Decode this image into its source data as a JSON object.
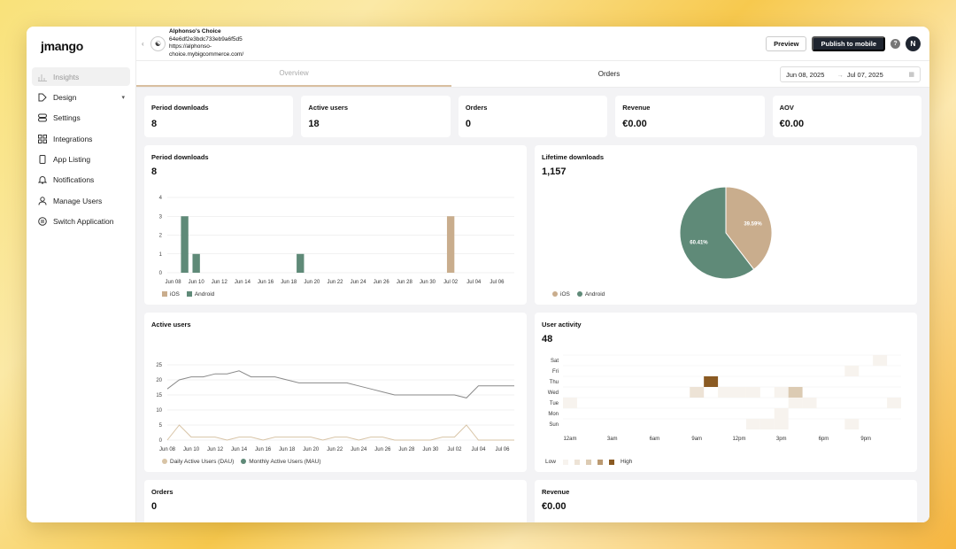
{
  "sidebar": {
    "logo": "jmango",
    "items": [
      {
        "label": "Insights",
        "icon": "bar-chart-icon",
        "active": true
      },
      {
        "label": "Design",
        "icon": "brush-icon",
        "caret": true
      },
      {
        "label": "Settings",
        "icon": "settings-icon"
      },
      {
        "label": "Integrations",
        "icon": "grid-icon"
      },
      {
        "label": "App Listing",
        "icon": "phone-icon"
      },
      {
        "label": "Notifications",
        "icon": "bell-icon"
      },
      {
        "label": "Manage Users",
        "icon": "user-icon"
      },
      {
        "label": "Switch Application",
        "icon": "switch-icon"
      }
    ]
  },
  "header": {
    "app_name": "Alphonso's Choice",
    "app_id": "64e6df2e3bdc733eb9a6f5d5",
    "app_url": "https://alphonso-choice.mybigcommerce.com/",
    "preview_label": "Preview",
    "publish_label": "Publish to mobile",
    "help": "?",
    "avatar_initial": "N"
  },
  "tabs": [
    {
      "label": "Overview",
      "active": true
    },
    {
      "label": "Orders",
      "active": false
    }
  ],
  "date_range": {
    "start": "Jun 08, 2025",
    "arrow": "→",
    "end": "Jul 07, 2025"
  },
  "kpis": [
    {
      "title": "Period downloads",
      "value": "8"
    },
    {
      "title": "Active users",
      "value": "18"
    },
    {
      "title": "Orders",
      "value": "0"
    },
    {
      "title": "Revenue",
      "value": "€0.00"
    },
    {
      "title": "AOV",
      "value": "€0.00"
    }
  ],
  "cards": {
    "period_downloads": {
      "title": "Period downloads",
      "value": "8"
    },
    "lifetime_downloads": {
      "title": "Lifetime downloads",
      "value": "1,157"
    },
    "active_users": {
      "title": "Active users",
      "value": ""
    },
    "user_activity": {
      "title": "User activity",
      "value": "48"
    },
    "orders": {
      "title": "Orders",
      "value": "0"
    },
    "revenue": {
      "title": "Revenue",
      "value": "€0.00"
    }
  },
  "colors": {
    "ios": "#c9ad8d",
    "android": "#5f8a78",
    "line_mau": "#8a8a8a",
    "line_dau": "#d8c4a6"
  },
  "chart_data": [
    {
      "type": "bar",
      "title": "",
      "categories": [
        "Jun 08",
        "Jun 09",
        "Jun 10",
        "Jun 11",
        "Jun 12",
        "Jun 13",
        "Jun 14",
        "Jun 15",
        "Jun 16",
        "Jun 17",
        "Jun 18",
        "Jun 19",
        "Jun 20",
        "Jun 21",
        "Jun 22",
        "Jun 23",
        "Jun 24",
        "Jun 25",
        "Jun 26",
        "Jun 27",
        "Jun 28",
        "Jun 29",
        "Jun 30",
        "Jul 01",
        "Jul 02",
        "Jul 03",
        "Jul 04",
        "Jul 05",
        "Jul 06",
        "Jul 07"
      ],
      "tick_labels": [
        "Jun 08",
        "Jun 10",
        "Jun 12",
        "Jun 14",
        "Jun 16",
        "Jun 18",
        "Jun 20",
        "Jun 22",
        "Jun 24",
        "Jun 26",
        "Jun 28",
        "Jun 30",
        "Jul 02",
        "Jul 04",
        "Jul 06"
      ],
      "series": [
        {
          "name": "iOS",
          "values": [
            0,
            0,
            0,
            0,
            0,
            0,
            0,
            0,
            0,
            0,
            0,
            0,
            0,
            0,
            0,
            0,
            0,
            0,
            0,
            0,
            0,
            0,
            0,
            0,
            3,
            0,
            0,
            0,
            0,
            0
          ]
        },
        {
          "name": "Android",
          "values": [
            0,
            3,
            1,
            0,
            0,
            0,
            0,
            0,
            0,
            0,
            0,
            1,
            0,
            0,
            0,
            0,
            0,
            0,
            0,
            0,
            0,
            0,
            0,
            0,
            0,
            0,
            0,
            0,
            0,
            0
          ]
        }
      ],
      "ylim": [
        0,
        4
      ],
      "yticks": [
        0,
        1,
        2,
        3,
        4
      ],
      "stacked": true
    },
    {
      "type": "pie",
      "title": "",
      "slices": [
        {
          "name": "iOS",
          "value": 39.59,
          "label": "39.59%"
        },
        {
          "name": "Android",
          "value": 60.41,
          "label": "60.41%"
        }
      ]
    },
    {
      "type": "line",
      "title": "",
      "categories": [
        "Jun 08",
        "Jun 09",
        "Jun 10",
        "Jun 11",
        "Jun 12",
        "Jun 13",
        "Jun 14",
        "Jun 15",
        "Jun 16",
        "Jun 17",
        "Jun 18",
        "Jun 19",
        "Jun 20",
        "Jun 21",
        "Jun 22",
        "Jun 23",
        "Jun 24",
        "Jun 25",
        "Jun 26",
        "Jun 27",
        "Jun 28",
        "Jun 29",
        "Jun 30",
        "Jul 01",
        "Jul 02",
        "Jul 03",
        "Jul 04",
        "Jul 05",
        "Jul 06",
        "Jul 07"
      ],
      "tick_labels": [
        "Jun 08",
        "Jun 10",
        "Jun 12",
        "Jun 14",
        "Jun 16",
        "Jun 18",
        "Jun 20",
        "Jun 22",
        "Jun 24",
        "Jun 26",
        "Jun 28",
        "Jun 30",
        "Jul 02",
        "Jul 04",
        "Jul 06"
      ],
      "series": [
        {
          "name": "Daily Active Users (DAU)",
          "values": [
            0,
            5,
            1,
            1,
            1,
            0,
            1,
            1,
            0,
            1,
            1,
            1,
            1,
            0,
            1,
            1,
            0,
            1,
            1,
            0,
            0,
            0,
            0,
            1,
            1,
            5,
            0,
            0,
            0,
            0
          ]
        },
        {
          "name": "Monthly Active Users (MAU)",
          "values": [
            17,
            20,
            21,
            21,
            22,
            22,
            23,
            21,
            21,
            21,
            20,
            19,
            19,
            19,
            19,
            19,
            18,
            17,
            16,
            15,
            15,
            15,
            15,
            15,
            15,
            14,
            18,
            18,
            18,
            18
          ]
        }
      ],
      "ylim": [
        0,
        25
      ],
      "yticks": [
        0,
        5,
        10,
        15,
        20,
        25
      ]
    },
    {
      "type": "heatmap",
      "title": "",
      "rows": [
        "Sat",
        "Fri",
        "Thu",
        "Wed",
        "Tue",
        "Mon",
        "Sun"
      ],
      "x_tick_labels": [
        "12am",
        "3am",
        "6am",
        "9am",
        "12pm",
        "3pm",
        "6pm",
        "9pm"
      ],
      "columns_per_day": 24,
      "cells": [
        {
          "row": "Sat",
          "hour": 22,
          "value": 1
        },
        {
          "row": "Fri",
          "hour": 20,
          "value": 1
        },
        {
          "row": "Thu",
          "hour": 10,
          "value": 5
        },
        {
          "row": "Wed",
          "hour": 9,
          "value": 2
        },
        {
          "row": "Wed",
          "hour": 11,
          "value": 1
        },
        {
          "row": "Wed",
          "hour": 12,
          "value": 1
        },
        {
          "row": "Wed",
          "hour": 13,
          "value": 1
        },
        {
          "row": "Wed",
          "hour": 15,
          "value": 1
        },
        {
          "row": "Wed",
          "hour": 16,
          "value": 3
        },
        {
          "row": "Tue",
          "hour": 0,
          "value": 1
        },
        {
          "row": "Tue",
          "hour": 16,
          "value": 1
        },
        {
          "row": "Tue",
          "hour": 17,
          "value": 1
        },
        {
          "row": "Tue",
          "hour": 23,
          "value": 1
        },
        {
          "row": "Mon",
          "hour": 15,
          "value": 1
        },
        {
          "row": "Sun",
          "hour": 13,
          "value": 1
        },
        {
          "row": "Sun",
          "hour": 14,
          "value": 1
        },
        {
          "row": "Sun",
          "hour": 15,
          "value": 1
        },
        {
          "row": "Sun",
          "hour": 20,
          "value": 1
        }
      ],
      "legend": {
        "low": "Low",
        "high": "High"
      }
    }
  ]
}
